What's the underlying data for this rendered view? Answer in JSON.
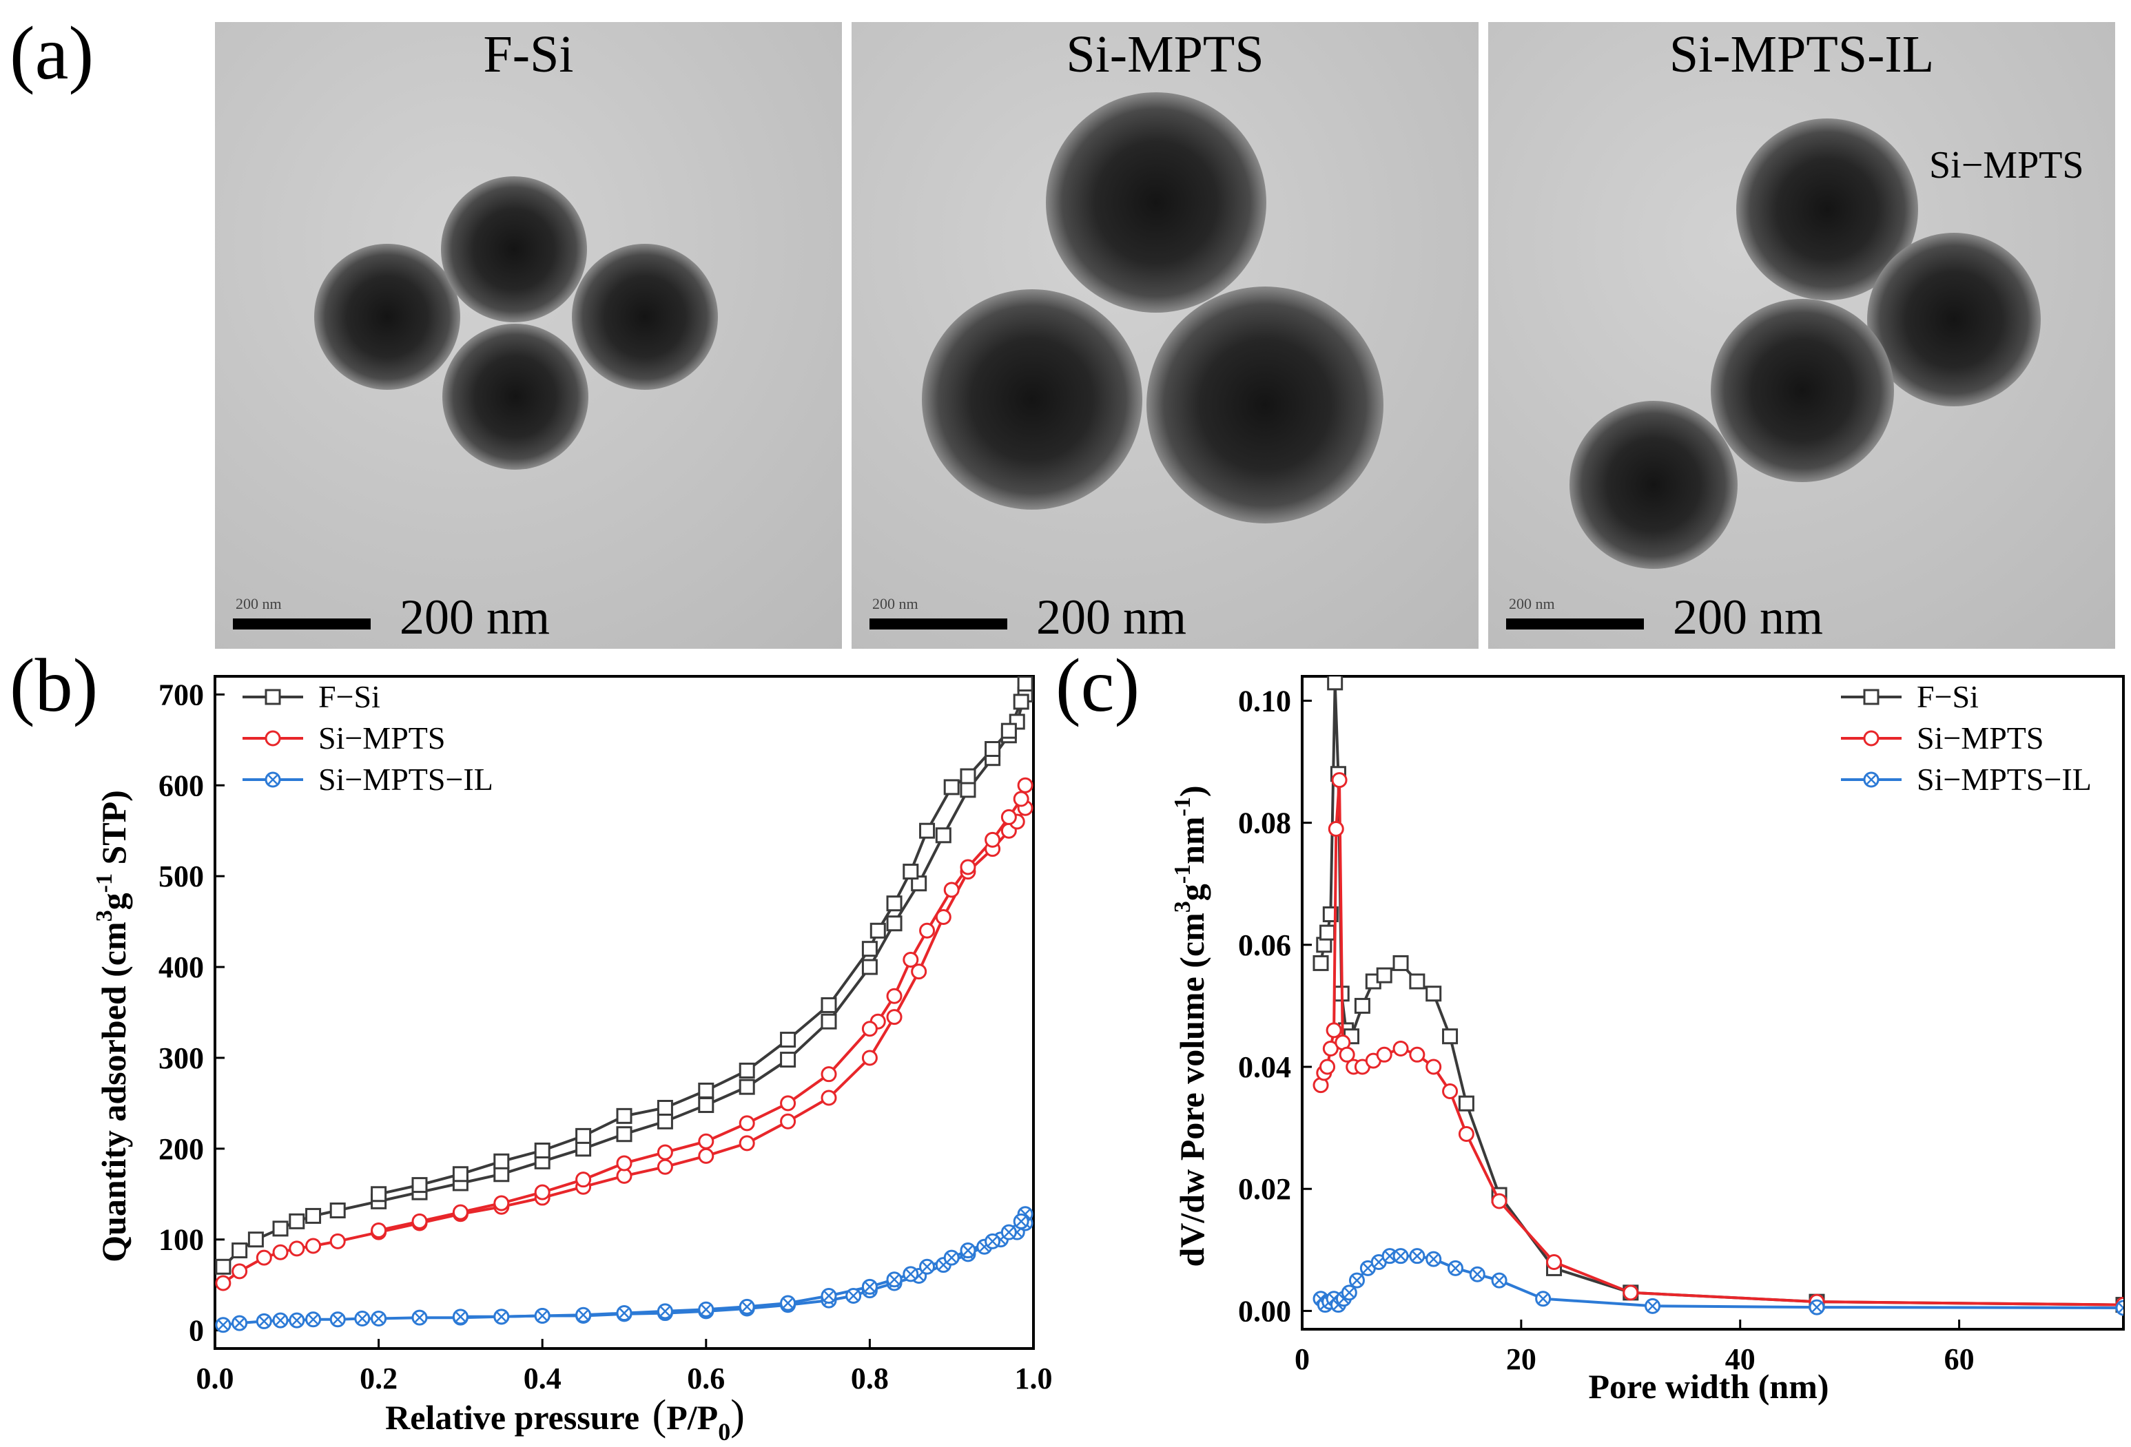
{
  "panel_labels": {
    "a": "(a)",
    "b": "(b)",
    "c": "(c)"
  },
  "tem": [
    {
      "title": "F-Si",
      "scale_text": "200 nm",
      "scale_small": "200 nm",
      "annotation": ""
    },
    {
      "title": "Si-MPTS",
      "scale_text": "200 nm",
      "scale_small": "200 nm",
      "annotation": ""
    },
    {
      "title": "Si-MPTS-IL",
      "scale_text": "200 nm",
      "scale_small": "200 nm",
      "annotation": "Si−MPTS"
    }
  ],
  "colors": {
    "fsi": "#3a3a3a",
    "mpts": "#e8262a",
    "il": "#2c7ad6"
  },
  "chart_data": [
    {
      "type": "line",
      "title": "",
      "xlabel": "Relative pressure (P/P0)",
      "xlabel_main": "Relative pressure",
      "xlabel_sym": "P/P",
      "xlabel_sub": "0",
      "ylabel": "Quantity adsorbed (cm3g-1 STP)",
      "xlim": [
        0,
        1.0
      ],
      "ylim": [
        -20,
        720
      ],
      "xticks": [
        0.0,
        0.2,
        0.4,
        0.6,
        0.8,
        1.0
      ],
      "xtick_labels": [
        "0.0",
        "0.2",
        "0.4",
        "0.6",
        "0.8",
        "1.0"
      ],
      "yticks": [
        0,
        100,
        200,
        300,
        400,
        500,
        600,
        700
      ],
      "ytick_labels": [
        "0",
        "100",
        "200",
        "300",
        "400",
        "500",
        "600",
        "700"
      ],
      "legend": "top-left",
      "series": [
        {
          "name": "F−Si",
          "color_key": "fsi",
          "marker": "square",
          "adsorption": [
            [
              0.01,
              70
            ],
            [
              0.03,
              88
            ],
            [
              0.05,
              100
            ],
            [
              0.08,
              112
            ],
            [
              0.1,
              120
            ],
            [
              0.12,
              126
            ],
            [
              0.15,
              132
            ],
            [
              0.2,
              142
            ],
            [
              0.25,
              152
            ],
            [
              0.3,
              162
            ],
            [
              0.35,
              172
            ],
            [
              0.4,
              186
            ],
            [
              0.45,
              200
            ],
            [
              0.5,
              216
            ],
            [
              0.55,
              230
            ],
            [
              0.6,
              248
            ],
            [
              0.65,
              268
            ],
            [
              0.7,
              298
            ],
            [
              0.75,
              340
            ],
            [
              0.8,
              400
            ],
            [
              0.83,
              448
            ],
            [
              0.86,
              492
            ],
            [
              0.89,
              545
            ],
            [
              0.92,
              595
            ],
            [
              0.95,
              630
            ],
            [
              0.97,
              655
            ],
            [
              0.98,
              670
            ],
            [
              0.99,
              700
            ]
          ],
          "desorption": [
            [
              0.99,
              712
            ],
            [
              0.985,
              692
            ],
            [
              0.97,
              660
            ],
            [
              0.95,
              640
            ],
            [
              0.92,
              610
            ],
            [
              0.9,
              598
            ],
            [
              0.87,
              550
            ],
            [
              0.85,
              505
            ],
            [
              0.83,
              470
            ],
            [
              0.81,
              440
            ],
            [
              0.8,
              420
            ],
            [
              0.75,
              358
            ],
            [
              0.7,
              320
            ],
            [
              0.65,
              286
            ],
            [
              0.6,
              264
            ],
            [
              0.55,
              245
            ],
            [
              0.5,
              236
            ],
            [
              0.45,
              214
            ],
            [
              0.4,
              198
            ],
            [
              0.35,
              186
            ],
            [
              0.3,
              172
            ],
            [
              0.25,
              160
            ],
            [
              0.2,
              150
            ]
          ]
        },
        {
          "name": "Si−MPTS",
          "color_key": "mpts",
          "marker": "circle",
          "adsorption": [
            [
              0.01,
              52
            ],
            [
              0.03,
              65
            ],
            [
              0.06,
              80
            ],
            [
              0.08,
              86
            ],
            [
              0.1,
              90
            ],
            [
              0.12,
              93
            ],
            [
              0.15,
              98
            ],
            [
              0.2,
              108
            ],
            [
              0.25,
              118
            ],
            [
              0.3,
              128
            ],
            [
              0.35,
              136
            ],
            [
              0.4,
              146
            ],
            [
              0.45,
              158
            ],
            [
              0.5,
              170
            ],
            [
              0.55,
              180
            ],
            [
              0.6,
              192
            ],
            [
              0.65,
              206
            ],
            [
              0.7,
              230
            ],
            [
              0.75,
              256
            ],
            [
              0.8,
              300
            ],
            [
              0.83,
              345
            ],
            [
              0.86,
              395
            ],
            [
              0.89,
              455
            ],
            [
              0.92,
              505
            ],
            [
              0.95,
              530
            ],
            [
              0.97,
              550
            ],
            [
              0.98,
              560
            ],
            [
              0.99,
              575
            ]
          ],
          "desorption": [
            [
              0.99,
              600
            ],
            [
              0.985,
              585
            ],
            [
              0.97,
              565
            ],
            [
              0.95,
              540
            ],
            [
              0.92,
              510
            ],
            [
              0.9,
              485
            ],
            [
              0.87,
              440
            ],
            [
              0.85,
              408
            ],
            [
              0.83,
              368
            ],
            [
              0.81,
              340
            ],
            [
              0.8,
              332
            ],
            [
              0.75,
              282
            ],
            [
              0.7,
              250
            ],
            [
              0.65,
              228
            ],
            [
              0.6,
              208
            ],
            [
              0.55,
              196
            ],
            [
              0.5,
              184
            ],
            [
              0.45,
              166
            ],
            [
              0.4,
              152
            ],
            [
              0.35,
              140
            ],
            [
              0.3,
              130
            ],
            [
              0.25,
              120
            ],
            [
              0.2,
              110
            ]
          ]
        },
        {
          "name": "Si−MPTS−IL",
          "color_key": "il",
          "marker": "xcircle",
          "adsorption": [
            [
              0.01,
              6
            ],
            [
              0.03,
              8
            ],
            [
              0.06,
              10
            ],
            [
              0.08,
              11
            ],
            [
              0.1,
              11
            ],
            [
              0.12,
              12
            ],
            [
              0.15,
              12
            ],
            [
              0.18,
              13
            ],
            [
              0.2,
              13
            ],
            [
              0.25,
              14
            ],
            [
              0.3,
              14
            ],
            [
              0.35,
              15
            ],
            [
              0.4,
              16
            ],
            [
              0.45,
              16
            ],
            [
              0.5,
              18
            ],
            [
              0.55,
              19
            ],
            [
              0.6,
              21
            ],
            [
              0.65,
              24
            ],
            [
              0.7,
              28
            ],
            [
              0.75,
              33
            ],
            [
              0.78,
              38
            ],
            [
              0.8,
              44
            ],
            [
              0.83,
              52
            ],
            [
              0.86,
              60
            ],
            [
              0.89,
              72
            ],
            [
              0.92,
              84
            ],
            [
              0.94,
              92
            ],
            [
              0.96,
              100
            ],
            [
              0.98,
              108
            ],
            [
              0.99,
              118
            ]
          ],
          "desorption": [
            [
              0.99,
              128
            ],
            [
              0.985,
              120
            ],
            [
              0.97,
              108
            ],
            [
              0.95,
              98
            ],
            [
              0.92,
              88
            ],
            [
              0.9,
              80
            ],
            [
              0.87,
              70
            ],
            [
              0.85,
              62
            ],
            [
              0.83,
              56
            ],
            [
              0.8,
              48
            ],
            [
              0.75,
              38
            ],
            [
              0.7,
              30
            ],
            [
              0.65,
              26
            ],
            [
              0.6,
              23
            ],
            [
              0.55,
              21
            ],
            [
              0.5,
              19
            ],
            [
              0.45,
              17
            ],
            [
              0.4,
              16
            ],
            [
              0.35,
              15
            ],
            [
              0.3,
              15
            ]
          ]
        }
      ]
    },
    {
      "type": "line",
      "title": "",
      "xlabel": "Pore width (nm)",
      "ylabel": "dV/dw Pore volume (cm3g-1nm-1)",
      "xlim": [
        0,
        75
      ],
      "ylim": [
        -0.003,
        0.104
      ],
      "xticks": [
        0,
        20,
        40,
        60
      ],
      "xtick_labels": [
        "0",
        "20",
        "40",
        "60"
      ],
      "yticks": [
        0.0,
        0.02,
        0.04,
        0.06,
        0.08,
        0.1
      ],
      "ytick_labels": [
        "0.00",
        "0.02",
        "0.04",
        "0.06",
        "0.08",
        "0.10"
      ],
      "legend": "top-right",
      "series": [
        {
          "name": "F−Si",
          "color_key": "fsi",
          "marker": "square",
          "points": [
            [
              1.7,
              0.057
            ],
            [
              2.0,
              0.06
            ],
            [
              2.3,
              0.062
            ],
            [
              2.6,
              0.065
            ],
            [
              3.0,
              0.103
            ],
            [
              3.3,
              0.088
            ],
            [
              3.6,
              0.052
            ],
            [
              4.0,
              0.046
            ],
            [
              4.5,
              0.045
            ],
            [
              5.5,
              0.05
            ],
            [
              6.5,
              0.054
            ],
            [
              7.5,
              0.055
            ],
            [
              9.0,
              0.057
            ],
            [
              10.5,
              0.054
            ],
            [
              12.0,
              0.052
            ],
            [
              13.5,
              0.045
            ],
            [
              15.0,
              0.034
            ],
            [
              18.0,
              0.019
            ],
            [
              23.0,
              0.007
            ],
            [
              30.0,
              0.003
            ],
            [
              47.0,
              0.0015
            ],
            [
              75.0,
              0.001
            ]
          ]
        },
        {
          "name": "Si−MPTS",
          "color_key": "mpts",
          "marker": "circle",
          "points": [
            [
              1.7,
              0.037
            ],
            [
              2.0,
              0.039
            ],
            [
              2.3,
              0.04
            ],
            [
              2.6,
              0.043
            ],
            [
              2.9,
              0.046
            ],
            [
              3.1,
              0.079
            ],
            [
              3.4,
              0.087
            ],
            [
              3.7,
              0.044
            ],
            [
              4.1,
              0.042
            ],
            [
              4.7,
              0.04
            ],
            [
              5.5,
              0.04
            ],
            [
              6.5,
              0.041
            ],
            [
              7.5,
              0.042
            ],
            [
              9.0,
              0.043
            ],
            [
              10.5,
              0.042
            ],
            [
              12.0,
              0.04
            ],
            [
              13.5,
              0.036
            ],
            [
              15.0,
              0.029
            ],
            [
              18.0,
              0.018
            ],
            [
              23.0,
              0.008
            ],
            [
              30.0,
              0.003
            ],
            [
              47.0,
              0.0015
            ],
            [
              75.0,
              0.001
            ]
          ]
        },
        {
          "name": "Si−MPTS−IL",
          "color_key": "il",
          "marker": "xcircle",
          "points": [
            [
              1.7,
              0.002
            ],
            [
              2.1,
              0.001
            ],
            [
              2.5,
              0.0015
            ],
            [
              2.9,
              0.002
            ],
            [
              3.3,
              0.001
            ],
            [
              3.8,
              0.002
            ],
            [
              4.3,
              0.003
            ],
            [
              5.0,
              0.005
            ],
            [
              6.0,
              0.007
            ],
            [
              7.0,
              0.008
            ],
            [
              8.0,
              0.009
            ],
            [
              9.0,
              0.009
            ],
            [
              10.5,
              0.009
            ],
            [
              12.0,
              0.0085
            ],
            [
              14.0,
              0.007
            ],
            [
              16.0,
              0.006
            ],
            [
              18.0,
              0.005
            ],
            [
              22.0,
              0.002
            ],
            [
              32.0,
              0.0008
            ],
            [
              47.0,
              0.0006
            ],
            [
              75.0,
              0.0005
            ]
          ]
        }
      ]
    }
  ]
}
